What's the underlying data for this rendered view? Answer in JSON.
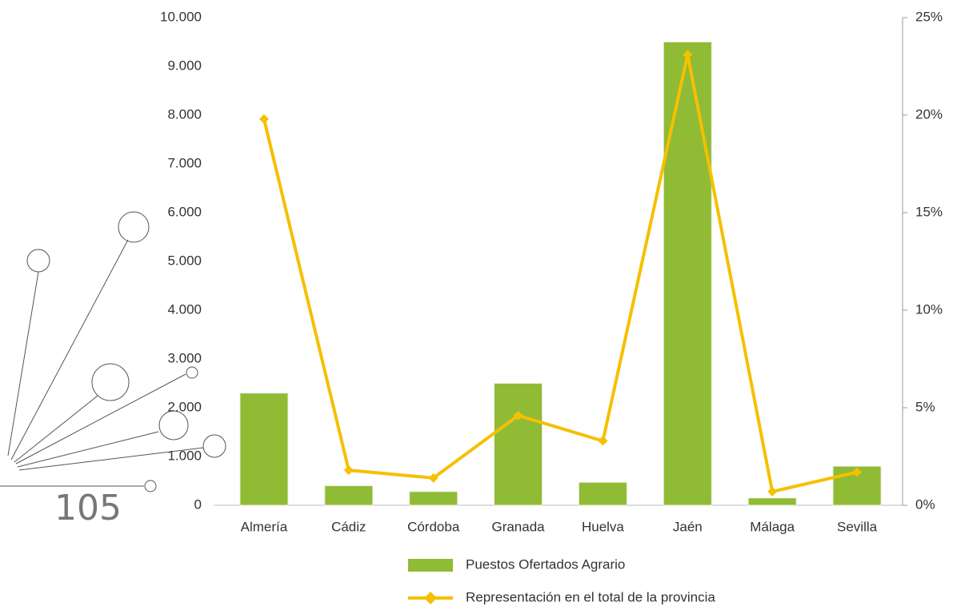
{
  "page_number": "105",
  "chart_data": {
    "type": "bar_line",
    "categories": [
      "Almería",
      "Cádiz",
      "Córdoba",
      "Granada",
      "Huelva",
      "Jaén",
      "Málaga",
      "Sevilla"
    ],
    "series": [
      {
        "name": "Puestos Ofertados Agrario",
        "type": "bar",
        "color": "#8fbb35",
        "values": [
          2300,
          400,
          280,
          2500,
          470,
          9500,
          150,
          800
        ]
      },
      {
        "name": "Representación en el total de la provincia",
        "type": "line",
        "axis": "y2",
        "color": "#f5c000",
        "values": [
          19.8,
          1.8,
          1.4,
          4.6,
          3.3,
          23.1,
          0.7,
          1.7
        ]
      }
    ],
    "ylim": [
      0,
      10000
    ],
    "yticks": [
      0,
      {
        "value": 1000,
        "label": "1.000"
      },
      {
        "value": 2000,
        "label": "2.000"
      },
      {
        "value": 3000,
        "label": "3.000"
      },
      {
        "value": 4000,
        "label": "4.000"
      },
      {
        "value": 5000,
        "label": "5.000"
      },
      {
        "value": 6000,
        "label": "6.000"
      },
      {
        "value": 7000,
        "label": "7.000"
      },
      {
        "value": 8000,
        "label": "8.000"
      },
      {
        "value": 9000,
        "label": "9.000"
      },
      {
        "value": 10000,
        "label": "10.000"
      }
    ],
    "y2lim": [
      0,
      25
    ],
    "y2ticks": [
      {
        "value": 0,
        "label": "0%"
      },
      {
        "value": 5,
        "label": "5%"
      },
      {
        "value": 10,
        "label": "10%"
      },
      {
        "value": 15,
        "label": "15%"
      },
      {
        "value": 20,
        "label": "20%"
      },
      {
        "value": 25,
        "label": "25%"
      }
    ]
  }
}
